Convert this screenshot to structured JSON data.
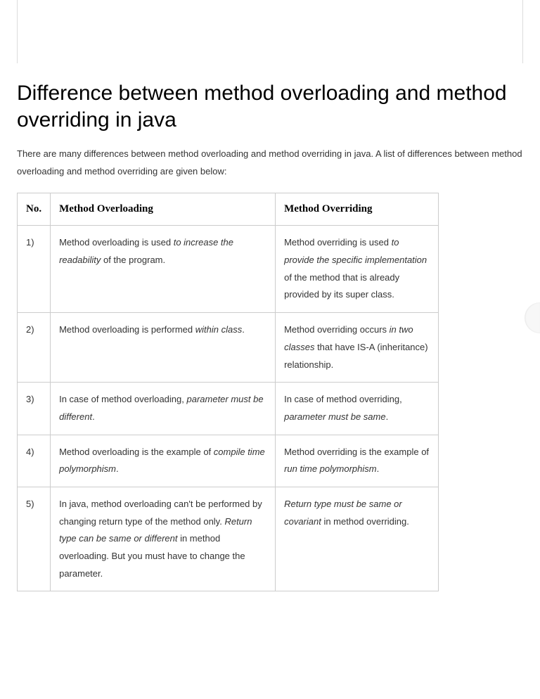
{
  "heading": "Difference between method overloading and method overriding in java",
  "intro": "There are many differences between method overloading and method overriding in java. A list of differences between method overloading and method overriding are given below:",
  "table": {
    "headers": {
      "no": "No.",
      "overloading": "Method Overloading",
      "overriding": "Method Overriding"
    },
    "rows": [
      {
        "no": "1)",
        "overloading_html": "Method overloading is used <em>to increase the readability</em> of the program.",
        "overriding_html": "Method overriding is used <em>to provide the specific implementation</em> of the method that is already provided by its super class."
      },
      {
        "no": "2)",
        "overloading_html": "Method overloading is performed <em>within class</em>.",
        "overriding_html": "Method overriding occurs <em>in two classes</em> that have IS-A (inheritance) relationship."
      },
      {
        "no": "3)",
        "overloading_html": "In case of method overloading, <em>parameter must be different</em>.",
        "overriding_html": "In case of method overriding, <em>parameter must be same</em>."
      },
      {
        "no": "4)",
        "overloading_html": "Method overloading is the example of <em>compile time polymorphism</em>.",
        "overriding_html": "Method overriding is the example of <em>run time polymorphism</em>."
      },
      {
        "no": "5)",
        "overloading_html": "In java, method overloading can't be performed by changing return type of the method only. <em>Return type can be same or different</em> in method overloading. But you must have to change the parameter.",
        "overriding_html": "<em>Return type must be same or covariant</em> in method overriding."
      }
    ]
  },
  "colors": {
    "border": "#cccccc",
    "text": "#333333",
    "heading": "#000000",
    "background": "#ffffff"
  }
}
